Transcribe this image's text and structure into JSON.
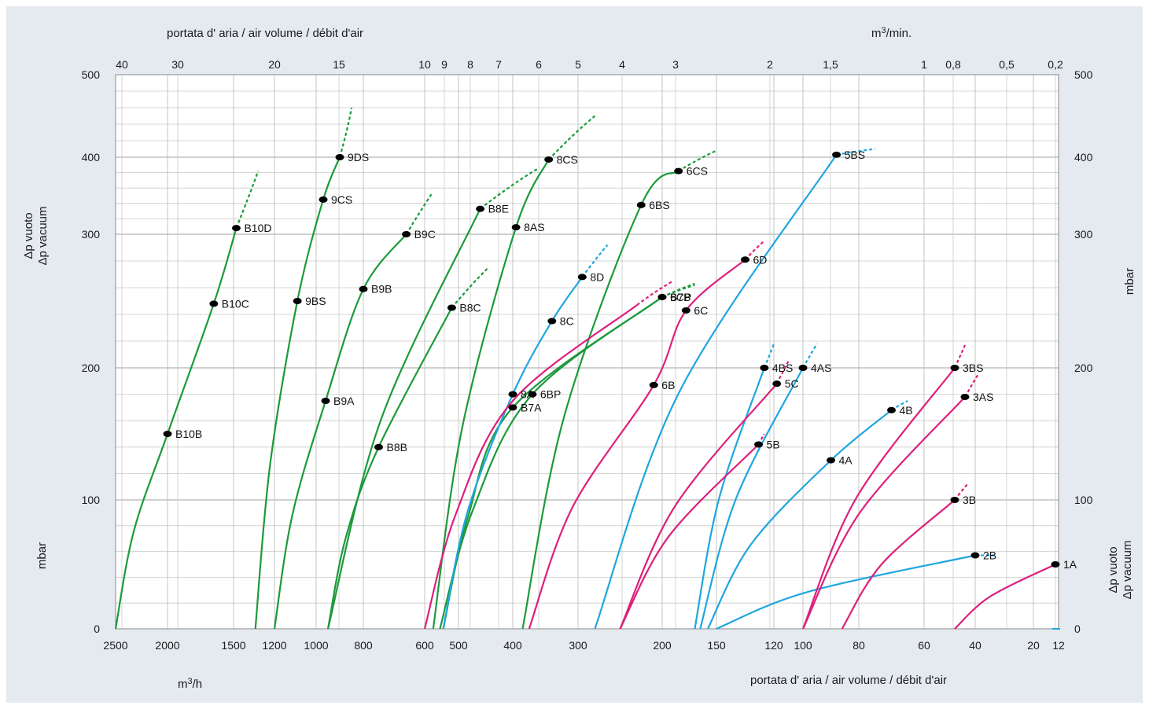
{
  "chart_data": {
    "type": "line",
    "top_axis_title": "portata d' aria / air volume / débit d'air",
    "top_axis_unit_prefix": "m",
    "top_axis_unit_sup": "3",
    "top_axis_unit_suffix": "/min.",
    "bottom_axis_title": "portata d' aria / air volume / débit d'air",
    "bottom_axis_unit_prefix": "m",
    "bottom_axis_unit_sup": "3",
    "bottom_axis_unit_suffix": "/h",
    "left_label_line1": "Δp vuoto",
    "left_label_line2": "Δp vacuum",
    "left_unit": "mbar",
    "right_unit": "mbar",
    "right_label_line1": "Δp vuoto",
    "right_label_line2": "Δp vacuum",
    "y_ticks": [
      "500",
      "400",
      "300",
      "200",
      "100",
      "0"
    ],
    "y_tick_values": [
      500,
      400,
      300,
      200,
      100,
      0
    ],
    "bottom_ticks": [
      "2500",
      "2000",
      "1500",
      "1200",
      "1000",
      "800",
      "600",
      "500",
      "400",
      "300",
      "200",
      "150",
      "120",
      "100",
      "80",
      "60",
      "40",
      "20",
      "12"
    ],
    "bottom_tick_values": [
      2500,
      2000,
      1500,
      1200,
      1000,
      800,
      600,
      500,
      400,
      300,
      200,
      150,
      120,
      100,
      80,
      60,
      40,
      20,
      12
    ],
    "top_ticks": [
      "40",
      "30",
      "20",
      "15",
      "10",
      "9",
      "8",
      "7",
      "6",
      "5",
      "4",
      "3",
      "2",
      "1,5",
      "1",
      "0,8",
      "0,5",
      "0,2"
    ],
    "top_tick_values": [
      40,
      30,
      20,
      15,
      10,
      9,
      8,
      7,
      6,
      5,
      4,
      3,
      2,
      1.5,
      1,
      0.8,
      0.5,
      0.2
    ],
    "colors": {
      "green": "#1c9a3a",
      "blue": "#1fa6df",
      "magenta": "#de1f7c"
    },
    "series": [
      {
        "name": "B10",
        "color": "green",
        "start": [
          2500,
          0
        ],
        "points": [
          {
            "label": "B10B",
            "x": 2000,
            "y": 150
          },
          {
            "label": "B10C",
            "x": 1650,
            "y": 248
          },
          {
            "label": "B10D",
            "x": 1480,
            "y": 308
          }
        ],
        "dashed_end": [
          1320,
          382
        ]
      },
      {
        "name": "9",
        "color": "green",
        "start": [
          1340,
          0
        ],
        "points": [
          {
            "label": "9BS",
            "x": 1090,
            "y": 250
          },
          {
            "label": "9CS",
            "x": 970,
            "y": 345
          },
          {
            "label": "9DS",
            "x": 900,
            "y": 400
          }
        ],
        "dashed_end": [
          850,
          460
        ]
      },
      {
        "name": "B9",
        "color": "green",
        "start": [
          1200,
          0
        ],
        "points": [
          {
            "label": "B9A",
            "x": 960,
            "y": 175
          },
          {
            "label": "B9B",
            "x": 800,
            "y": 259
          },
          {
            "label": "B9C",
            "x": 660,
            "y": 300
          }
        ],
        "dashed_end": [
          580,
          352
        ]
      },
      {
        "name": "B8",
        "color": "green",
        "start": [
          950,
          0
        ],
        "points": [
          {
            "label": "B8B",
            "x": 750,
            "y": 140
          },
          {
            "label": "B8C",
            "x": 520,
            "y": 245
          }
        ],
        "dashed_end": [
          445,
          275
        ]
      },
      {
        "name": "B8E",
        "color": "green",
        "start": [
          950,
          0
        ],
        "points": [
          {
            "label": "B8E",
            "x": 460,
            "y": 333
          }
        ],
        "dashed_end": [
          360,
          386
        ]
      },
      {
        "name": "8AS",
        "color": "green",
        "start": [
          575,
          0
        ],
        "points": [
          {
            "label": "8AS",
            "x": 395,
            "y": 309
          },
          {
            "label": "8CS",
            "x": 345,
            "y": 397
          }
        ],
        "dashed_end": [
          280,
          450
        ]
      },
      {
        "name": "B7",
        "color": "green",
        "start": [
          545,
          0
        ],
        "points": [
          {
            "label": "B7A",
            "x": 400,
            "y": 170
          },
          {
            "label": "B7B",
            "x": 200,
            "y": 253
          }
        ],
        "dashed_end": [
          170,
          262
        ]
      },
      {
        "name": "6S",
        "color": "green",
        "start": [
          385,
          0
        ],
        "points": [
          {
            "label": "6BS",
            "x": 225,
            "y": 338
          },
          {
            "label": "6CS",
            "x": 185,
            "y": 382
          }
        ],
        "dashed_end": [
          150,
          408
        ]
      },
      {
        "name": "6P",
        "color": "green",
        "start": [
          555,
          0
        ],
        "points": [
          {
            "label": "6BP",
            "x": 370,
            "y": 180
          },
          {
            "label": "6CP",
            "x": 200,
            "y": 253
          }
        ],
        "dashed_end": [
          170,
          263
        ]
      },
      {
        "name": "8",
        "color": "blue",
        "start": [
          545,
          0
        ],
        "points": [
          {
            "label": "8A",
            "x": 400,
            "y": 180
          },
          {
            "label": "8C",
            "x": 340,
            "y": 235
          },
          {
            "label": "8D",
            "x": 295,
            "y": 268
          }
        ],
        "dashed_end": [
          265,
          292
        ]
      },
      {
        "name": "6B",
        "color": "blue",
        "start": [
          280,
          0
        ],
        "points": [
          {
            "label": "5BS",
            "x": 88,
            "y": 403
          }
        ],
        "dashed_end": [
          75,
          410
        ]
      },
      {
        "name": "4BS",
        "color": "blue",
        "start": [
          170,
          0
        ],
        "points": [
          {
            "label": "4BS",
            "x": 125,
            "y": 200
          }
        ],
        "dashed_end": [
          120,
          218
        ]
      },
      {
        "name": "4AS",
        "color": "blue",
        "start": [
          165,
          0
        ],
        "points": [
          {
            "label": "4AS",
            "x": 100,
            "y": 200
          }
        ],
        "dashed_end": [
          95,
          218
        ]
      },
      {
        "name": "4",
        "color": "blue",
        "start": [
          158,
          0
        ],
        "points": [
          {
            "label": "4A",
            "x": 90,
            "y": 130
          },
          {
            "label": "4B",
            "x": 70,
            "y": 168
          }
        ],
        "dashed_end": [
          65,
          175
        ]
      },
      {
        "name": "2B",
        "color": "blue",
        "start": [
          150,
          0
        ],
        "points": [
          {
            "label": "2B",
            "x": 40,
            "y": 57
          }
        ],
        "dashed_end": [
          33,
          57
        ]
      },
      {
        "name": "6",
        "color": "magenta",
        "start": [
          375,
          0
        ],
        "points": [
          {
            "label": "6B",
            "x": 210,
            "y": 187
          },
          {
            "label": "6C",
            "x": 178,
            "y": 243
          },
          {
            "label": "6D",
            "x": 135,
            "y": 281
          }
        ],
        "dashed_end": [
          125,
          295
        ]
      },
      {
        "name": "6BX",
        "color": "magenta",
        "start": [
          600,
          0
        ],
        "points": [],
        "through": [
          [
            400,
            175
          ],
          [
            230,
            247
          ]
        ],
        "dashed_end": [
          190,
          265
        ]
      },
      {
        "name": "5C",
        "color": "magenta",
        "start": [
          250,
          0
        ],
        "points": [
          {
            "label": "5C",
            "x": 118,
            "y": 188
          }
        ],
        "dashed_end": [
          110,
          205
        ]
      },
      {
        "name": "5B",
        "color": "magenta",
        "start": [
          250,
          0
        ],
        "points": [
          {
            "label": "5B",
            "x": 128,
            "y": 142
          }
        ],
        "dashed_end": [
          125,
          150
        ]
      },
      {
        "name": "3BS",
        "color": "magenta",
        "start": [
          100,
          0
        ],
        "points": [
          {
            "label": "3BS",
            "x": 48,
            "y": 200
          }
        ],
        "dashed_end": [
          44,
          217
        ]
      },
      {
        "name": "3AS",
        "color": "magenta",
        "start": [
          100,
          0
        ],
        "points": [
          {
            "label": "3AS",
            "x": 44,
            "y": 178
          }
        ],
        "dashed_end": [
          39,
          195
        ]
      },
      {
        "name": "3B",
        "color": "magenta",
        "start": [
          86,
          0
        ],
        "points": [
          {
            "label": "3B",
            "x": 48,
            "y": 100
          }
        ],
        "dashed_end": [
          43,
          112
        ]
      },
      {
        "name": "1A",
        "color": "magenta",
        "start": [
          48,
          0
        ],
        "points": [
          {
            "label": "1A",
            "x": 13,
            "y": 50
          }
        ],
        "dashed_end": [
          13,
          50
        ]
      }
    ]
  }
}
